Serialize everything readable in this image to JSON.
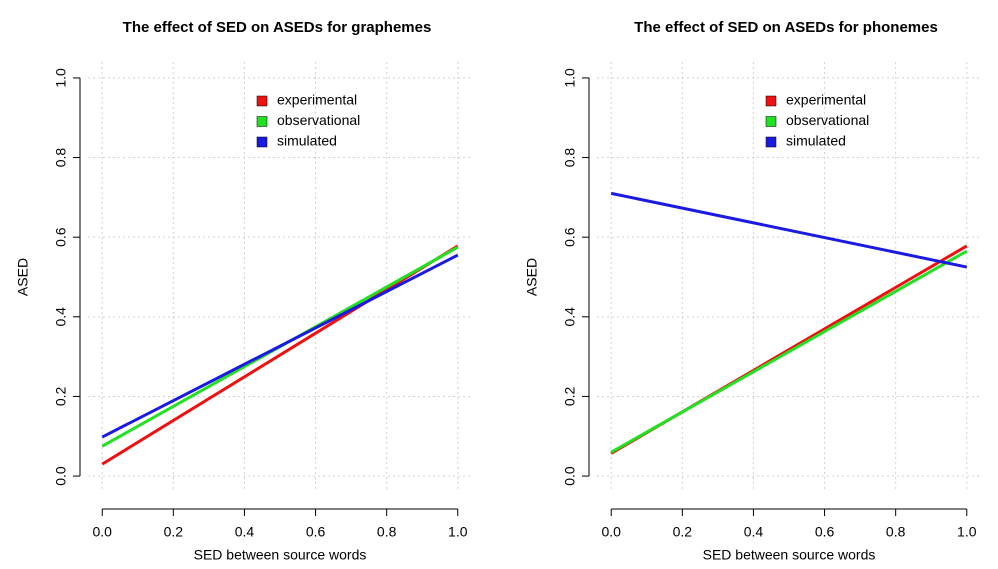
{
  "chart_data": [
    {
      "type": "line",
      "title": "The effect of SED on ASEDs for graphemes",
      "x_label": "SED between source words",
      "y_label": "ASED",
      "x": [
        0,
        1
      ],
      "series": [
        {
          "name": "experimental",
          "color": "#ee1111",
          "values": [
            0.03,
            0.578
          ]
        },
        {
          "name": "observational",
          "color": "#22e022",
          "values": [
            0.075,
            0.575
          ]
        },
        {
          "name": "simulated",
          "color": "#1a1ae0",
          "values": [
            0.098,
            0.555
          ]
        }
      ],
      "xlim": [
        -0.04,
        1.04
      ],
      "ylim": [
        -0.04,
        1.04
      ],
      "xticks": [
        {
          "value": 0,
          "label": "0.0"
        },
        0.2,
        0.4,
        0.6,
        0.8,
        {
          "value": 1,
          "label": "1.0"
        }
      ],
      "yticks": [
        {
          "value": 0,
          "label": "0.0"
        },
        0.2,
        0.4,
        0.6,
        0.8,
        {
          "value": 1,
          "label": "1.0"
        }
      ],
      "grid": true,
      "legend": "top-right"
    },
    {
      "type": "line",
      "title": "The effect of SED on ASEDs for phonemes",
      "x_label": "SED between source words",
      "y_label": "ASED",
      "x": [
        0,
        1
      ],
      "series": [
        {
          "name": "experimental",
          "color": "#ee1111",
          "values": [
            0.057,
            0.578
          ]
        },
        {
          "name": "observational",
          "color": "#22e022",
          "values": [
            0.06,
            0.565
          ]
        },
        {
          "name": "simulated",
          "color": "#1a1ae0",
          "values": [
            0.71,
            0.525
          ]
        }
      ],
      "xlim": [
        -0.04,
        1.04
      ],
      "ylim": [
        -0.04,
        1.04
      ],
      "xticks": [
        {
          "value": 0,
          "label": "0.0"
        },
        0.2,
        0.4,
        0.6,
        0.8,
        {
          "value": 1,
          "label": "1.0"
        }
      ],
      "yticks": [
        {
          "value": 0,
          "label": "0.0"
        },
        0.2,
        0.4,
        0.6,
        0.8,
        {
          "value": 1,
          "label": "1.0"
        }
      ],
      "grid": true,
      "legend": "top-right"
    }
  ]
}
